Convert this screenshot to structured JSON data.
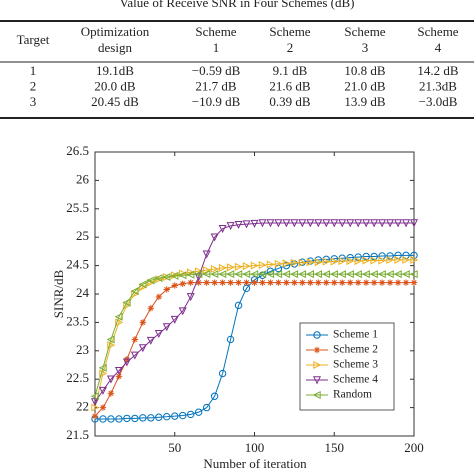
{
  "table": {
    "title": "Value of Receive SNR in Four Schemes (dB)",
    "headers": [
      [
        "Target"
      ],
      [
        "Optimization",
        "design"
      ],
      [
        "Scheme",
        "1"
      ],
      [
        "Scheme",
        "2"
      ],
      [
        "Scheme",
        "3"
      ],
      [
        "Scheme",
        "4"
      ]
    ],
    "rows": [
      [
        "1",
        "19.1dB",
        "−0.59 dB",
        "9.1 dB",
        "10.8 dB",
        "14.2 dB"
      ],
      [
        "2",
        "20.0 dB",
        "21.7 dB",
        "21.6 dB",
        "21.0 dB",
        "21.3dB"
      ],
      [
        "3",
        "20.45 dB",
        "−10.9 dB",
        "0.39 dB",
        "13.9 dB",
        "−3.0dB"
      ]
    ]
  },
  "chart_data": {
    "type": "line",
    "xlabel": "Number of iteration",
    "ylabel": "SINR/dB",
    "xlim": [
      0,
      200
    ],
    "xticks": [
      50,
      100,
      150,
      200
    ],
    "ylim": [
      21.5,
      26.5
    ],
    "yticks": [
      21.5,
      22,
      22.5,
      23,
      23.5,
      24,
      24.5,
      25,
      25.5,
      26,
      26.5
    ],
    "legend": "lower right",
    "x": [
      0,
      5,
      10,
      15,
      20,
      25,
      30,
      35,
      40,
      45,
      50,
      55,
      60,
      65,
      70,
      75,
      80,
      85,
      90,
      95,
      100,
      105,
      110,
      115,
      120,
      125,
      130,
      135,
      140,
      145,
      150,
      155,
      160,
      165,
      170,
      175,
      180,
      185,
      190,
      195,
      200
    ],
    "series": [
      {
        "name": "Scheme 1",
        "color": "#0072bd",
        "marker": "o",
        "values": [
          21.8,
          21.8,
          21.8,
          21.8,
          21.81,
          21.81,
          21.82,
          21.82,
          21.83,
          21.84,
          21.85,
          21.86,
          21.88,
          21.92,
          22.0,
          22.2,
          22.6,
          23.2,
          23.8,
          24.1,
          24.25,
          24.33,
          24.4,
          24.45,
          24.5,
          24.53,
          24.56,
          24.58,
          24.6,
          24.61,
          24.62,
          24.63,
          24.64,
          24.65,
          24.66,
          24.66,
          24.67,
          24.67,
          24.68,
          24.68,
          24.68
        ]
      },
      {
        "name": "Scheme 2",
        "color": "#d95319",
        "marker": "*",
        "values": [
          21.85,
          22.0,
          22.25,
          22.55,
          22.85,
          23.2,
          23.5,
          23.75,
          23.95,
          24.08,
          24.15,
          24.18,
          24.2,
          24.2,
          24.2,
          24.2,
          24.2,
          24.2,
          24.2,
          24.2,
          24.2,
          24.2,
          24.2,
          24.2,
          24.2,
          24.2,
          24.2,
          24.2,
          24.2,
          24.2,
          24.2,
          24.2,
          24.2,
          24.2,
          24.2,
          24.2,
          24.2,
          24.2,
          24.2,
          24.2,
          24.2
        ]
      },
      {
        "name": "Scheme 3",
        "color": "#edb120",
        "marker": ">",
        "values": [
          22.0,
          22.6,
          23.1,
          23.5,
          23.8,
          24.0,
          24.12,
          24.2,
          24.26,
          24.3,
          24.33,
          24.36,
          24.38,
          24.4,
          24.42,
          24.44,
          24.46,
          24.47,
          24.48,
          24.49,
          24.5,
          24.51,
          24.52,
          24.53,
          24.54,
          24.55,
          24.55,
          24.56,
          24.56,
          24.57,
          24.57,
          24.58,
          24.58,
          24.58,
          24.59,
          24.59,
          24.59,
          24.6,
          24.6,
          24.6,
          24.6
        ]
      },
      {
        "name": "Scheme 4",
        "color": "#7e2f8e",
        "marker": "v",
        "values": [
          22.1,
          22.3,
          22.5,
          22.65,
          22.8,
          22.92,
          23.05,
          23.18,
          23.3,
          23.42,
          23.55,
          23.7,
          23.95,
          24.3,
          24.7,
          25.0,
          25.15,
          25.2,
          25.22,
          25.23,
          25.24,
          25.25,
          25.25,
          25.25,
          25.25,
          25.25,
          25.25,
          25.25,
          25.25,
          25.25,
          25.25,
          25.25,
          25.25,
          25.25,
          25.25,
          25.25,
          25.25,
          25.25,
          25.25,
          25.25,
          25.25
        ]
      },
      {
        "name": "Random",
        "color": "#77ac30",
        "marker": "<",
        "values": [
          22.2,
          22.7,
          23.2,
          23.6,
          23.85,
          24.05,
          24.17,
          24.24,
          24.28,
          24.3,
          24.32,
          24.33,
          24.34,
          24.35,
          24.35,
          24.35,
          24.35,
          24.35,
          24.35,
          24.35,
          24.35,
          24.35,
          24.35,
          24.35,
          24.35,
          24.35,
          24.35,
          24.35,
          24.35,
          24.35,
          24.35,
          24.35,
          24.35,
          24.35,
          24.35,
          24.35,
          24.35,
          24.35,
          24.35,
          24.35,
          24.35
        ]
      }
    ]
  }
}
